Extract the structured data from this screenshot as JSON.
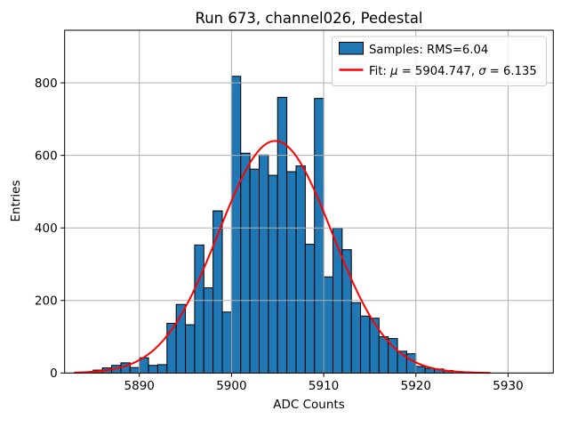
{
  "chart_data": {
    "type": "bar",
    "subtype": "histogram-with-gaussian-fit",
    "title": "Run 673, channel026, Pedestal",
    "xlabel": "ADC Counts",
    "ylabel": "Entries",
    "xlim": [
      5881.9,
      5934.9
    ],
    "ylim": [
      0,
      945
    ],
    "xticks": [
      5890,
      5900,
      5910,
      5920,
      5930
    ],
    "yticks": [
      0,
      200,
      400,
      600,
      800
    ],
    "grid": true,
    "grid_color": "#b0b0b0",
    "legend": {
      "position": "upper right",
      "items": [
        {
          "type": "patch",
          "label": "Samples: RMS=6.04"
        },
        {
          "type": "line",
          "label": "Fit: μ = 5904.747, σ = 6.135"
        }
      ]
    },
    "histogram": {
      "bin_start": 5885,
      "bin_width": 1,
      "fill_color": "#1f77b4",
      "edge_color": "#000000",
      "bin_left_edges": [
        5885,
        5886,
        5887,
        5888,
        5889,
        5890,
        5891,
        5892,
        5893,
        5894,
        5895,
        5896,
        5897,
        5898,
        5899,
        5900,
        5901,
        5902,
        5903,
        5904,
        5905,
        5906,
        5907,
        5908,
        5909,
        5910,
        5911,
        5912,
        5913,
        5914,
        5915,
        5916,
        5917,
        5918,
        5919,
        5920,
        5921,
        5922,
        5923
      ],
      "counts": [
        8,
        14,
        21,
        28,
        15,
        42,
        21,
        23,
        137,
        189,
        133,
        353,
        235,
        447,
        168,
        818,
        606,
        562,
        601,
        545,
        760,
        555,
        571,
        355,
        757,
        265,
        399,
        340,
        194,
        157,
        151,
        100,
        95,
        60,
        53,
        18,
        13,
        11,
        7
      ]
    },
    "fit": {
      "mu": 5904.747,
      "sigma": 6.135,
      "rms": 6.04,
      "amplitude": 640,
      "x_range": [
        5883,
        5928
      ],
      "color": "#ff0000"
    }
  }
}
